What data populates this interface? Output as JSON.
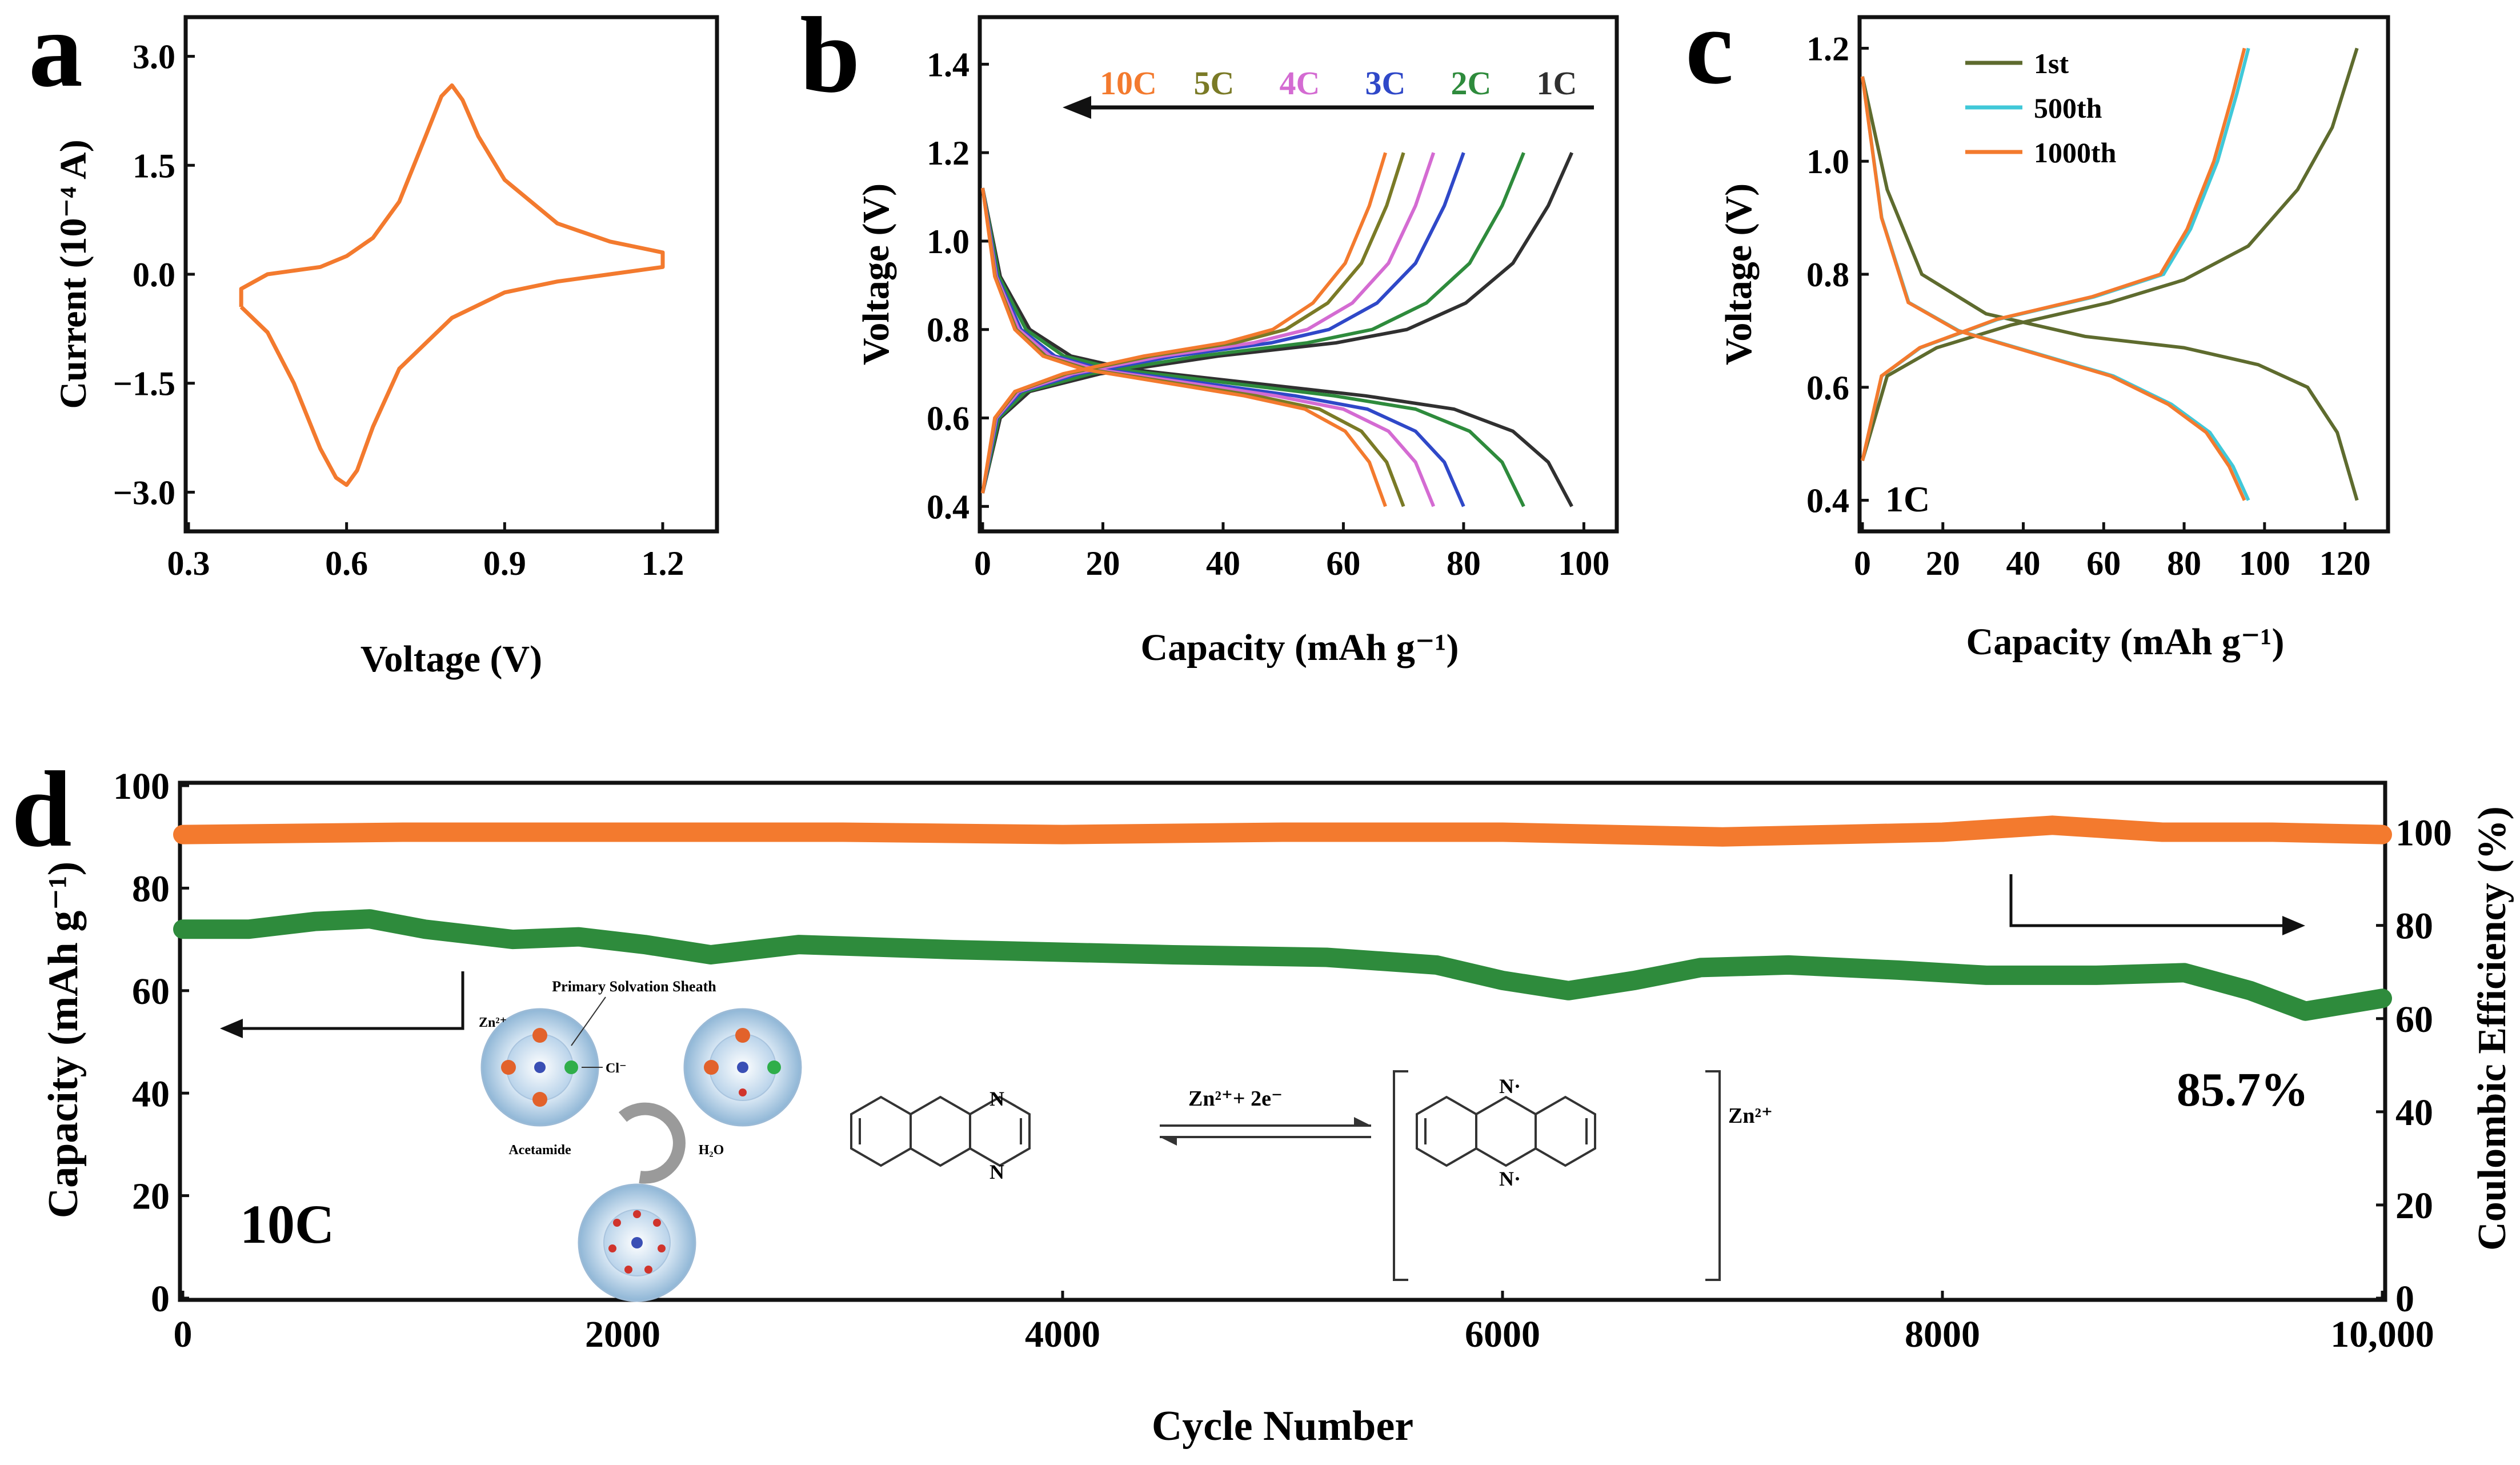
{
  "colors": {
    "orange": "#F37A2E",
    "green": "#2E8B3C",
    "black": "#303030",
    "blue": "#2F48C8",
    "magenta": "#D46BD2",
    "olive": "#7A7A26",
    "cyan": "#40C8D8",
    "darkolive": "#5E6B2E"
  },
  "chart_data": [
    {
      "panel": "a",
      "type": "line",
      "xlabel": "Voltage (V)",
      "ylabel": "Current (10⁻⁴ A)",
      "xlim": [
        0.3,
        1.2
      ],
      "ylim": [
        -3.5,
        3.5
      ],
      "xticks": [
        "0.3",
        "0.6",
        "0.9",
        "1.2"
      ],
      "yticks": [
        "3.0",
        "1.5",
        "0.0",
        "−1.5",
        "−3.0"
      ],
      "series": [
        {
          "color": "orange",
          "x": [
            0.4,
            0.45,
            0.5,
            0.55,
            0.58,
            0.6,
            0.62,
            0.65,
            0.7,
            0.8,
            0.9,
            1.0,
            1.1,
            1.2,
            1.2,
            1.1,
            1.0,
            0.9,
            0.85,
            0.82,
            0.8,
            0.78,
            0.75,
            0.7,
            0.65,
            0.6,
            0.55,
            0.5,
            0.45,
            0.4,
            0.4
          ],
          "y": [
            -0.45,
            -0.8,
            -1.5,
            -2.4,
            -2.8,
            -2.9,
            -2.7,
            -2.1,
            -1.3,
            -0.6,
            -0.25,
            -0.1,
            0.0,
            0.1,
            0.3,
            0.45,
            0.7,
            1.3,
            1.9,
            2.4,
            2.6,
            2.45,
            1.9,
            1.0,
            0.5,
            0.25,
            0.1,
            0.05,
            0.0,
            -0.2,
            -0.45
          ]
        }
      ]
    },
    {
      "panel": "b",
      "type": "line",
      "xlabel": "Capacity (mAh g⁻¹)",
      "ylabel": "Voltage (V)",
      "xlim": [
        0,
        105
      ],
      "ylim": [
        0.35,
        1.5
      ],
      "xticks": [
        "0",
        "20",
        "40",
        "60",
        "80",
        "100"
      ],
      "yticks": [
        "0.4",
        "0.6",
        "0.8",
        "1.0",
        "1.2",
        "1.4"
      ],
      "legend_order": [
        "10C",
        "5C",
        "4C",
        "3C",
        "2C",
        "1C"
      ],
      "series": [
        {
          "name": "1C",
          "color": "black",
          "capacity": 98
        },
        {
          "name": "2C",
          "color": "green",
          "capacity": 90
        },
        {
          "name": "3C",
          "color": "blue",
          "capacity": 80
        },
        {
          "name": "4C",
          "color": "magenta",
          "capacity": 75
        },
        {
          "name": "5C",
          "color": "olive",
          "capacity": 70
        },
        {
          "name": "10C",
          "color": "orange",
          "capacity": 67
        }
      ]
    },
    {
      "panel": "c",
      "type": "line",
      "xlabel": "Capacity (mAh g⁻¹)",
      "ylabel": "Voltage (V)",
      "xlim": [
        0,
        130
      ],
      "ylim": [
        0.35,
        1.25
      ],
      "xticks": [
        "0",
        "20",
        "40",
        "60",
        "80",
        "100",
        "120"
      ],
      "yticks": [
        "0.4",
        "0.6",
        "0.8",
        "1.0",
        "1.2"
      ],
      "annotation": "1C",
      "series": [
        {
          "name": "1st",
          "color": "darkolive",
          "capacity": 123
        },
        {
          "name": "500th",
          "color": "cyan",
          "capacity": 96
        },
        {
          "name": "1000th",
          "color": "orange",
          "capacity": 95
        }
      ]
    },
    {
      "panel": "d",
      "type": "scatter",
      "xlabel": "Cycle Number",
      "ylabel": "Capacity (mAh g⁻¹)",
      "ylabel_right": "Coulombic Efficiency (%)",
      "xlim": [
        0,
        10000
      ],
      "ylim": [
        0,
        100
      ],
      "ylim_right": [
        0,
        110
      ],
      "xticks": [
        "0",
        "2000",
        "4000",
        "6000",
        "8000",
        "10,000"
      ],
      "yticks": [
        "0",
        "20",
        "40",
        "60",
        "80",
        "100"
      ],
      "yticks_right": [
        "0",
        "20",
        "40",
        "60",
        "80",
        "100"
      ],
      "series": [
        {
          "name": "Capacity",
          "color": "green",
          "axis": "left",
          "x": [
            0,
            300,
            600,
            850,
            1100,
            1500,
            1800,
            2100,
            2400,
            2800,
            3500,
            4500,
            5200,
            5700,
            6000,
            6300,
            6600,
            6900,
            7300,
            7800,
            8200,
            8700,
            9100,
            9400,
            9650,
            10000
          ],
          "y": [
            72,
            72,
            73.5,
            74,
            72,
            70,
            70.5,
            69,
            67,
            69,
            68,
            67,
            66.5,
            65,
            62,
            60,
            62,
            64.5,
            65,
            64,
            63,
            63,
            63.5,
            60,
            56,
            58.5
          ]
        },
        {
          "name": "Coulombic Efficiency",
          "color": "orange",
          "axis": "right",
          "x": [
            0,
            1000,
            2000,
            3000,
            4000,
            5000,
            6000,
            7000,
            7500,
            8000,
            8500,
            9000,
            9500,
            10000
          ],
          "y": [
            99.5,
            100,
            100,
            100,
            99.5,
            100,
            100,
            99,
            99.5,
            100,
            101.5,
            100,
            100,
            99.5
          ]
        }
      ],
      "annotations": {
        "rate": "10C",
        "retention": "85.7%"
      },
      "inset": {
        "solvation_title": "Primary Solvation Sheath",
        "zn_label": "Zn²⁺",
        "cl_label": "Cl⁻",
        "acetamide_label": "Acetamide",
        "water_label": "H₂O",
        "reaction_label": "Zn²⁺+  2e⁻",
        "n_label": "N",
        "n_radical_label": "N·",
        "product_zn_label": "Zn²⁺"
      }
    }
  ],
  "panel_labels": [
    "a",
    "b",
    "c",
    "d"
  ]
}
